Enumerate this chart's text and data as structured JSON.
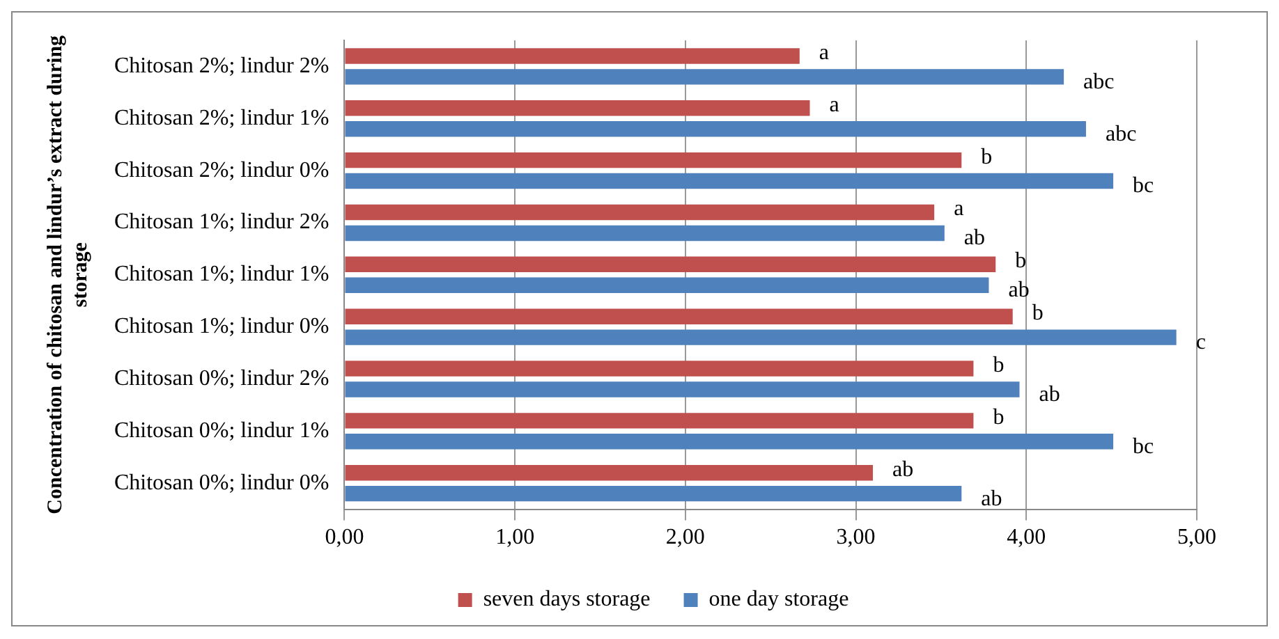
{
  "chart_data": {
    "type": "bar",
    "orientation": "horizontal",
    "ylabel": "Concentration of chitosan and lindur’s extract during storage",
    "categories": [
      "Chitosan 2%; lindur 2%",
      "Chitosan 2%; lindur 1%",
      "Chitosan 2%; lindur 0%",
      "Chitosan 1%; lindur 2%",
      "Chitosan 1%; lindur 1%",
      "Chitosan 1%; lindur 0%",
      "Chitosan 0%; lindur 2%",
      "Chitosan 0%; lindur 1%",
      "Chitosan 0%; lindur 0%"
    ],
    "series": [
      {
        "name": "seven days storage",
        "color": "#c0504d",
        "values": [
          2.67,
          2.73,
          3.62,
          3.46,
          3.82,
          3.92,
          3.69,
          3.69,
          3.1
        ],
        "value_labels": [
          "a",
          "a",
          "b",
          "a",
          "b",
          "b",
          "b",
          "b",
          "ab"
        ]
      },
      {
        "name": "one day storage",
        "color": "#4f81bd",
        "values": [
          4.22,
          4.35,
          4.51,
          3.52,
          3.78,
          4.88,
          3.96,
          4.51,
          3.62
        ],
        "value_labels": [
          "abc",
          "abc",
          "bc",
          "ab",
          "ab",
          "c",
          "ab",
          "bc",
          "ab"
        ]
      }
    ],
    "xlim": [
      0,
      5
    ],
    "xticks": [
      {
        "value": 0,
        "label": "0,00"
      },
      {
        "value": 1,
        "label": "1,00"
      },
      {
        "value": 2,
        "label": "2,00"
      },
      {
        "value": 3,
        "label": "3,00"
      },
      {
        "value": 4,
        "label": "4,00"
      },
      {
        "value": 5,
        "label": "5,00"
      }
    ],
    "grid": "x",
    "legend": "bottom"
  }
}
